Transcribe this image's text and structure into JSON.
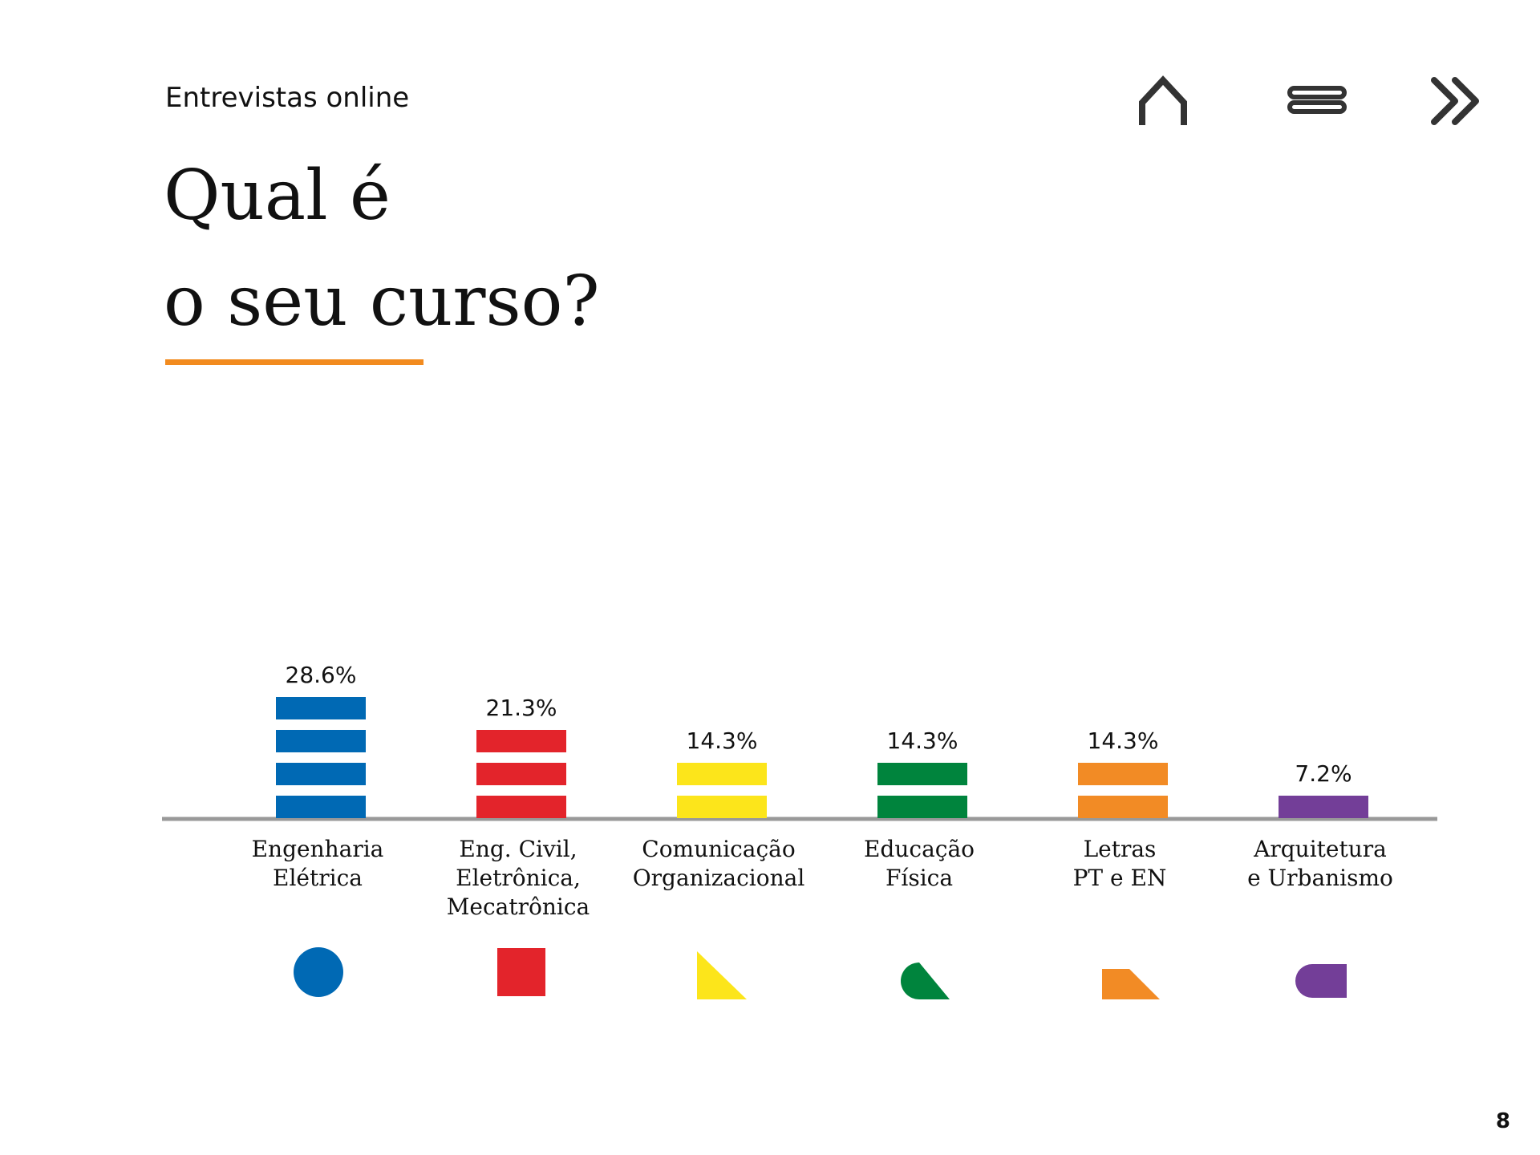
{
  "header": {
    "subtitle": "Entrevistas online",
    "title_lines": [
      "Qual é",
      "o seu curso?"
    ],
    "accent_color": "#f28b1f"
  },
  "nav": {
    "home_icon": "home-icon",
    "menu_icon": "menu-icon",
    "next_icon": "double-chevron-right-icon"
  },
  "page_number": "8",
  "chart_data": {
    "type": "bar",
    "title": "Qual é o seu curso?",
    "unit": "%",
    "grid": false,
    "legend": "none",
    "categories": [
      [
        "Engenharia",
        "Elétrica"
      ],
      [
        "Eng. Civil,",
        "Eletrônica,",
        "Mecatrônica"
      ],
      [
        "Comunicação",
        "Organizacional"
      ],
      [
        "Educação",
        "Física"
      ],
      [
        "Letras",
        "PT e EN"
      ],
      [
        "Arquitetura",
        "e Urbanismo"
      ]
    ],
    "values": [
      28.6,
      21.3,
      14.3,
      14.3,
      14.3,
      7.2
    ],
    "value_labels": [
      "28.6%",
      "21.3%",
      "14.3%",
      "14.3%",
      "14.3%",
      "7.2%"
    ],
    "segments": [
      4,
      3,
      2,
      2,
      2,
      1
    ],
    "colors": [
      "#0069b4",
      "#e3242b",
      "#fce51b",
      "#00843d",
      "#f28b25",
      "#733e98"
    ],
    "category_shapes": [
      "circle",
      "square",
      "triangle",
      "quarter-round-triangle",
      "trapezoid",
      "rounded-pill"
    ]
  }
}
